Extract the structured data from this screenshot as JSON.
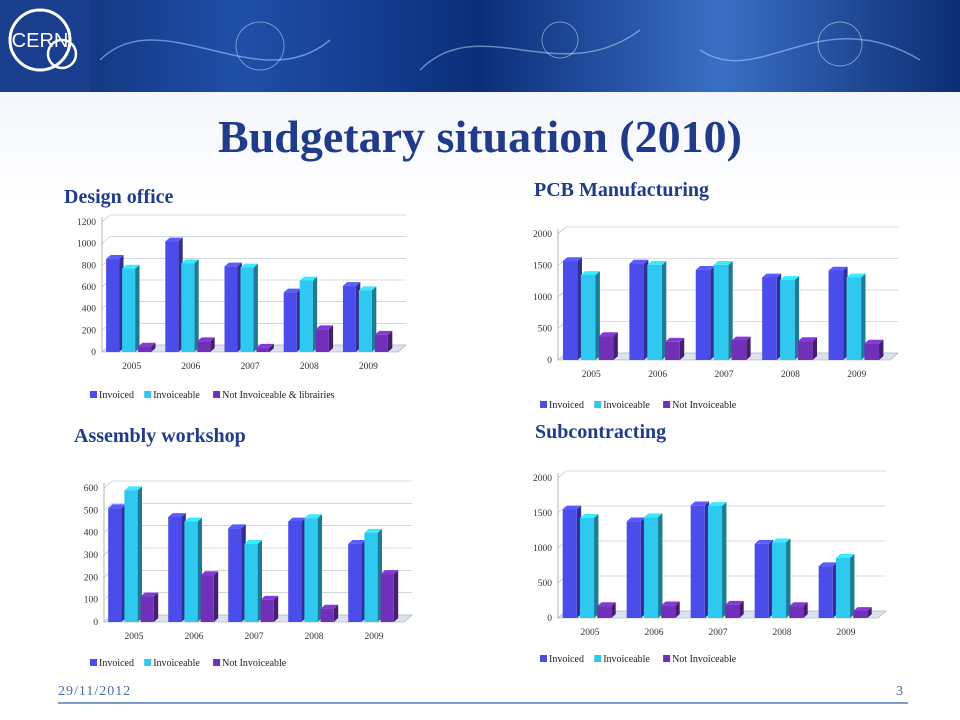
{
  "title": "Budgetary situation (2010)",
  "footer": {
    "date": "29/11/2012",
    "page": "3"
  },
  "banner_text": "CERN",
  "colors": {
    "invoiced": "#4b4dea",
    "invoiceable": "#2fc8f0",
    "not_invoiceable": "#7030b8"
  },
  "chart_data": [
    {
      "id": "design",
      "title": "Design office",
      "type": "bar",
      "categories": [
        "2005",
        "2006",
        "2007",
        "2008",
        "2009"
      ],
      "ylim": [
        0,
        1200
      ],
      "yticks": [
        0,
        200,
        400,
        600,
        800,
        1000,
        1200
      ],
      "series": [
        {
          "name": "Invoiced",
          "values": [
            860,
            1020,
            790,
            550,
            610
          ]
        },
        {
          "name": "Invoiceable",
          "values": [
            770,
            820,
            780,
            660,
            570
          ]
        },
        {
          "name": "Not Invoiceable & librairies",
          "values": [
            50,
            100,
            40,
            210,
            160
          ]
        }
      ]
    },
    {
      "id": "pcb",
      "title": "PCB Manufacturing",
      "type": "bar",
      "categories": [
        "2005",
        "2006",
        "2007",
        "2008",
        "2009"
      ],
      "ylim": [
        0,
        2000
      ],
      "yticks": [
        0,
        500,
        1000,
        1500,
        2000
      ],
      "series": [
        {
          "name": "Invoiced",
          "values": [
            1570,
            1530,
            1430,
            1310,
            1420
          ]
        },
        {
          "name": "Invoiceable",
          "values": [
            1350,
            1510,
            1510,
            1270,
            1310
          ]
        },
        {
          "name": "Not Invoiceable",
          "values": [
            380,
            290,
            310,
            300,
            260
          ]
        }
      ]
    },
    {
      "id": "assembly",
      "title": "Assembly workshop",
      "type": "bar",
      "categories": [
        "2005",
        "2006",
        "2007",
        "2008",
        "2009"
      ],
      "ylim": [
        0,
        600
      ],
      "yticks": [
        0,
        100,
        200,
        300,
        400,
        500,
        600
      ],
      "series": [
        {
          "name": "Invoiced",
          "values": [
            510,
            470,
            420,
            450,
            350
          ]
        },
        {
          "name": "Invoiceable",
          "values": [
            590,
            450,
            350,
            465,
            400
          ]
        },
        {
          "name": "Not Invoiceable",
          "values": [
            115,
            210,
            100,
            60,
            215
          ]
        }
      ]
    },
    {
      "id": "sub",
      "title": "Subcontracting",
      "type": "bar",
      "categories": [
        "2005",
        "2006",
        "2007",
        "2008",
        "2009"
      ],
      "ylim": [
        0,
        2000
      ],
      "yticks": [
        0,
        500,
        1000,
        1500,
        2000
      ],
      "series": [
        {
          "name": "Invoiced",
          "values": [
            1550,
            1380,
            1610,
            1060,
            740
          ]
        },
        {
          "name": "Invoiceable",
          "values": [
            1430,
            1440,
            1600,
            1080,
            860
          ]
        },
        {
          "name": "Not Invoiceable",
          "values": [
            170,
            180,
            190,
            170,
            100
          ]
        }
      ]
    }
  ]
}
